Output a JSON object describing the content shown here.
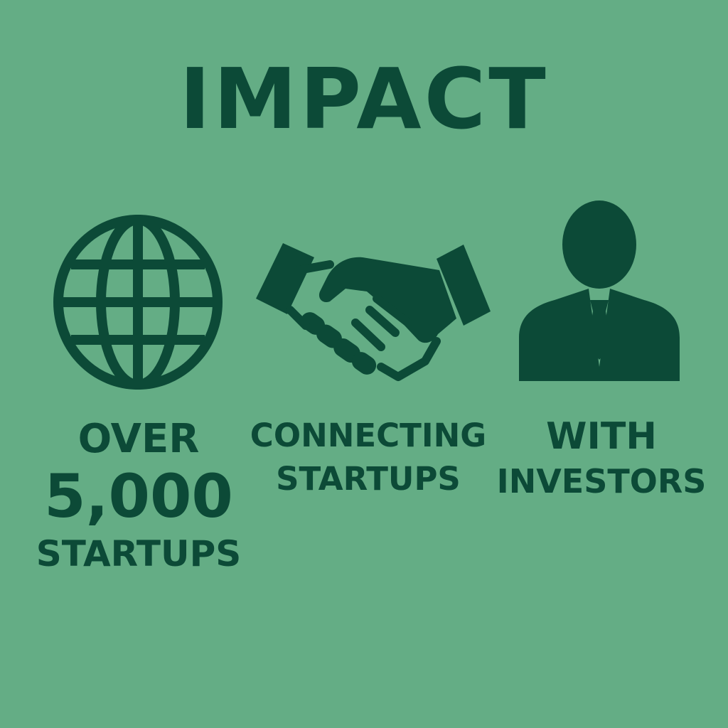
{
  "title": "IMPACT",
  "colors": {
    "background": "#64ad85",
    "foreground": "#0c4a37"
  },
  "columns": [
    {
      "icon": "globe-icon",
      "lines": [
        "OVER",
        "5,000",
        "STARTUPS"
      ]
    },
    {
      "icon": "handshake-icon",
      "lines": [
        "CONNECTING",
        "STARTUPS"
      ]
    },
    {
      "icon": "businessman-icon",
      "lines": [
        "WITH",
        "INVESTORS"
      ]
    }
  ]
}
